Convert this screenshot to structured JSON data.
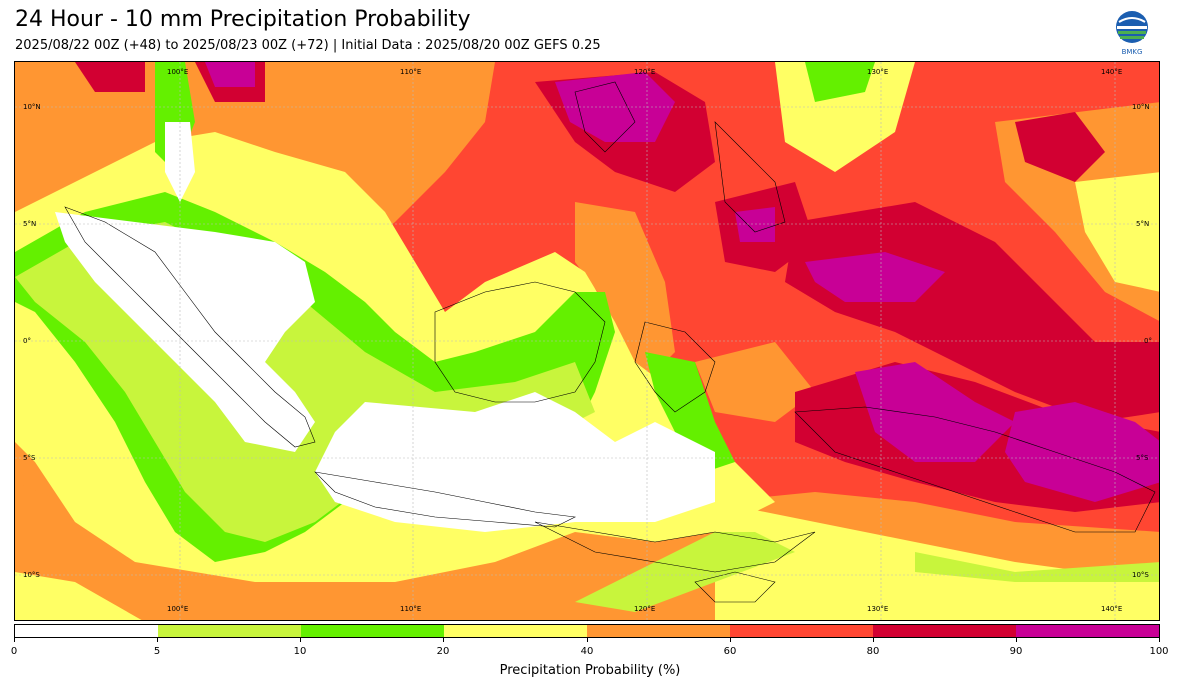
{
  "header": {
    "title": "24 Hour - 10 mm Precipitation Probability",
    "subtitle": "2025/08/22 00Z (+48) to 2025/08/23 00Z (+72) | Initial Data : 2025/08/20 00Z GEFS 0.25",
    "logo_text": "BMKG"
  },
  "map": {
    "lon_labels_top": [
      "100°E",
      "110°E",
      "120°E",
      "130°E",
      "140°E"
    ],
    "lon_labels_bottom": [
      "100°E",
      "110°E",
      "120°E",
      "130°E",
      "140°E"
    ],
    "lat_labels_left": [
      "10°N",
      "5°N",
      "0°",
      "5°S",
      "10°S"
    ],
    "lat_labels_right": [
      "10°N",
      "5°N",
      "0°",
      "5°S",
      "10°S"
    ],
    "lon_range": [
      93,
      142
    ],
    "lat_range": [
      -12,
      12
    ]
  },
  "colorbar": {
    "title": "Precipitation Probability (%)",
    "ticks": [
      "0",
      "5",
      "10",
      "20",
      "40",
      "60",
      "80",
      "90",
      "100"
    ],
    "colors": [
      "#ffffff",
      "#c8f53c",
      "#64f000",
      "#ffff64",
      "#ff9632",
      "#ff4632",
      "#d20032",
      "#c80096"
    ]
  }
}
